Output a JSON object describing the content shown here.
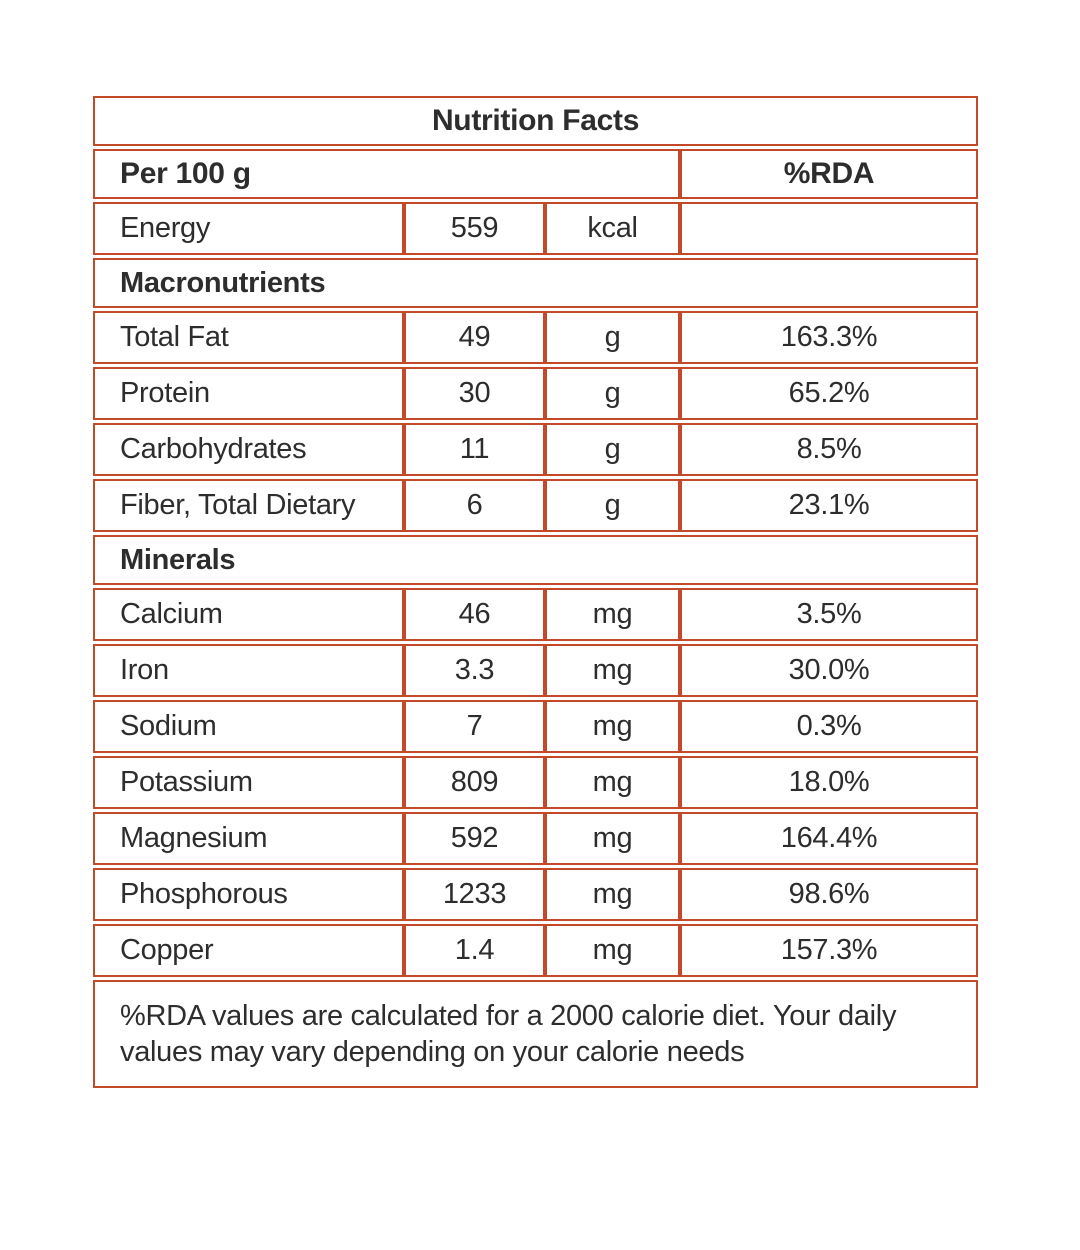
{
  "table": {
    "title": "Nutrition Facts",
    "serving_label": "Per 100 g",
    "rda_header": "%RDA",
    "energy": {
      "name": "Energy",
      "value": "559",
      "unit": "kcal",
      "rda": ""
    },
    "sections": [
      {
        "label": "Macronutrients",
        "rows": [
          {
            "name": "Total Fat",
            "value": "49",
            "unit": "g",
            "rda": "163.3%"
          },
          {
            "name": "Protein",
            "value": "30",
            "unit": "g",
            "rda": "65.2%"
          },
          {
            "name": "Carbohydrates",
            "value": "11",
            "unit": "g",
            "rda": "8.5%"
          },
          {
            "name": "Fiber, Total Dietary",
            "value": "6",
            "unit": "g",
            "rda": "23.1%"
          }
        ]
      },
      {
        "label": "Minerals",
        "rows": [
          {
            "name": "Calcium",
            "value": "46",
            "unit": "mg",
            "rda": "3.5%"
          },
          {
            "name": "Iron",
            "value": "3.3",
            "unit": "mg",
            "rda": "30.0%"
          },
          {
            "name": "Sodium",
            "value": "7",
            "unit": "mg",
            "rda": "0.3%"
          },
          {
            "name": "Potassium",
            "value": "809",
            "unit": "mg",
            "rda": "18.0%"
          },
          {
            "name": "Magnesium",
            "value": "592",
            "unit": "mg",
            "rda": "164.4%"
          },
          {
            "name": "Phosphorous",
            "value": "1233",
            "unit": "mg",
            "rda": "98.6%"
          },
          {
            "name": "Copper",
            "value": "1.4",
            "unit": "mg",
            "rda": "157.3%"
          }
        ]
      }
    ],
    "footnote": "%RDA values are calculated for a 2000 calorie diet. Your daily values may vary depending on your calorie needs"
  },
  "colors": {
    "border": "#c3492b",
    "text": "#2d2d2d",
    "background": "#ffffff"
  }
}
